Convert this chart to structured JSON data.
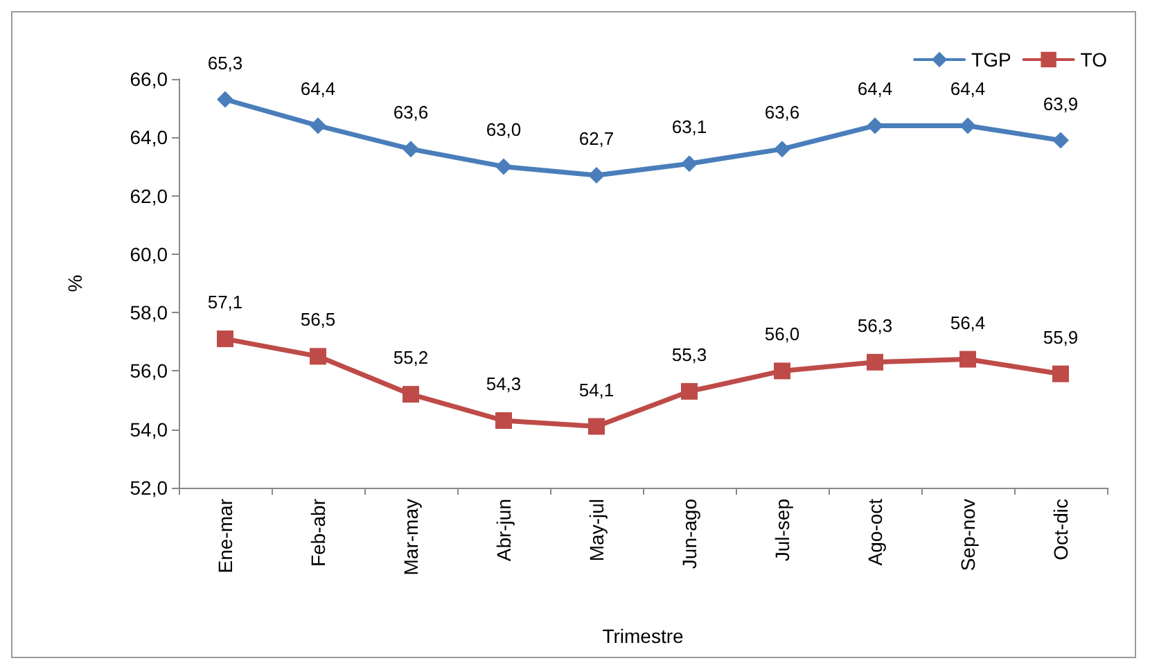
{
  "chart_data": {
    "type": "line",
    "xlabel": "Trimestre",
    "ylabel": "%",
    "categories": [
      "Ene-mar",
      "Feb-abr",
      "Mar-may",
      "Abr-jun",
      "May-jul",
      "Jun-ago",
      "Jul-sep",
      "Ago-oct",
      "Sep-nov",
      "Oct-dic"
    ],
    "series": [
      {
        "name": "TGP",
        "color": "#4a7ebb",
        "marker": "diamond",
        "values": [
          65.3,
          64.4,
          63.6,
          63.0,
          62.7,
          63.1,
          63.6,
          64.4,
          64.4,
          63.9
        ],
        "value_labels": [
          "65,3",
          "64,4",
          "63,6",
          "63,0",
          "62,7",
          "63,1",
          "63,6",
          "64,4",
          "64,4",
          "63,9"
        ]
      },
      {
        "name": "TO",
        "color": "#be4b48",
        "marker": "square",
        "values": [
          57.1,
          56.5,
          55.2,
          54.3,
          54.1,
          55.3,
          56.0,
          56.3,
          56.4,
          55.9
        ],
        "value_labels": [
          "57,1",
          "56,5",
          "55,2",
          "54,3",
          "54,1",
          "55,3",
          "56,0",
          "56,3",
          "56,4",
          "55,9"
        ]
      }
    ],
    "ylim": [
      52,
      66
    ],
    "yticks": [
      {
        "value": 52,
        "label": "52,0"
      },
      {
        "value": 54,
        "label": "54,0"
      },
      {
        "value": 56,
        "label": "56,0"
      },
      {
        "value": 58,
        "label": "58,0"
      },
      {
        "value": 60,
        "label": "60,0"
      },
      {
        "value": 62,
        "label": "62,0"
      },
      {
        "value": 64,
        "label": "64,0"
      },
      {
        "value": 66,
        "label": "66,0"
      }
    ],
    "grid": false,
    "legend": "top right",
    "line_style": "solid"
  }
}
